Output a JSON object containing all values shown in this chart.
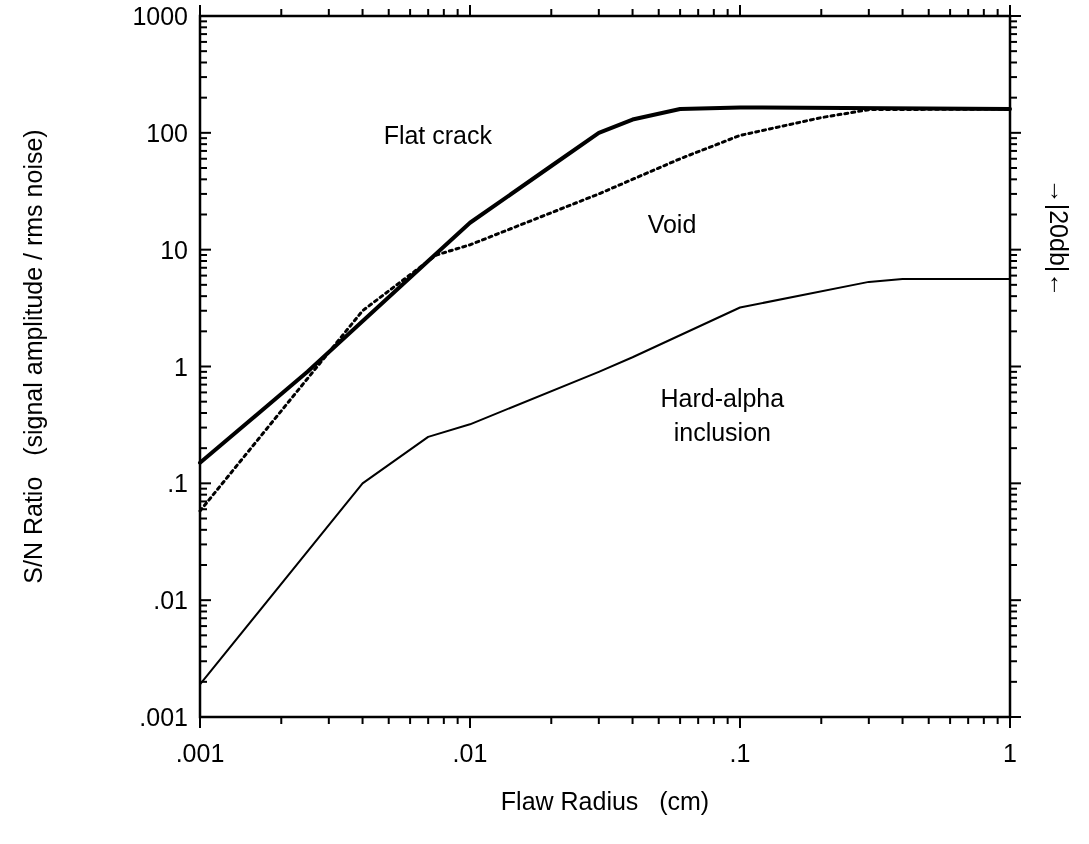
{
  "chart_data": {
    "type": "line",
    "xlabel": "Flaw Radius   (cm)",
    "ylabel": "S/N Ratio   (signal amplitude / rms noise)",
    "log": "xy",
    "xlim": [
      0.001,
      1
    ],
    "ylim": [
      0.001,
      1000
    ],
    "xticks": [
      {
        "value": 0.001,
        "label": ".001"
      },
      {
        "value": 0.002,
        "label": null
      },
      {
        "value": 0.003,
        "label": null
      },
      {
        "value": 0.004,
        "label": null
      },
      {
        "value": 0.005,
        "label": null
      },
      {
        "value": 0.006,
        "label": null
      },
      {
        "value": 0.007,
        "label": null
      },
      {
        "value": 0.008,
        "label": null
      },
      {
        "value": 0.009,
        "label": null
      },
      {
        "value": 0.01,
        "label": ".01"
      },
      {
        "value": 0.02,
        "label": null
      },
      {
        "value": 0.03,
        "label": null
      },
      {
        "value": 0.04,
        "label": null
      },
      {
        "value": 0.05,
        "label": null
      },
      {
        "value": 0.06,
        "label": null
      },
      {
        "value": 0.07,
        "label": null
      },
      {
        "value": 0.08,
        "label": null
      },
      {
        "value": 0.09,
        "label": null
      },
      {
        "value": 0.1,
        "label": ".1"
      },
      {
        "value": 0.2,
        "label": null
      },
      {
        "value": 0.3,
        "label": null
      },
      {
        "value": 0.4,
        "label": null
      },
      {
        "value": 0.5,
        "label": null
      },
      {
        "value": 0.6,
        "label": null
      },
      {
        "value": 0.7,
        "label": null
      },
      {
        "value": 0.8,
        "label": null
      },
      {
        "value": 0.9,
        "label": null
      },
      1
    ],
    "yticks": [
      {
        "value": 0.001,
        "label": ".001"
      },
      {
        "value": 0.002,
        "label": null
      },
      {
        "value": 0.003,
        "label": null
      },
      {
        "value": 0.004,
        "label": null
      },
      {
        "value": 0.005,
        "label": null
      },
      {
        "value": 0.006,
        "label": null
      },
      {
        "value": 0.007,
        "label": null
      },
      {
        "value": 0.008,
        "label": null
      },
      {
        "value": 0.009,
        "label": null
      },
      {
        "value": 0.01,
        "label": ".01"
      },
      {
        "value": 0.02,
        "label": null
      },
      {
        "value": 0.03,
        "label": null
      },
      {
        "value": 0.04,
        "label": null
      },
      {
        "value": 0.05,
        "label": null
      },
      {
        "value": 0.06,
        "label": null
      },
      {
        "value": 0.07,
        "label": null
      },
      {
        "value": 0.08,
        "label": null
      },
      {
        "value": 0.09,
        "label": null
      },
      {
        "value": 0.1,
        "label": ".1"
      },
      {
        "value": 0.2,
        "label": null
      },
      {
        "value": 0.3,
        "label": null
      },
      {
        "value": 0.4,
        "label": null
      },
      {
        "value": 0.5,
        "label": null
      },
      {
        "value": 0.6,
        "label": null
      },
      {
        "value": 0.7,
        "label": null
      },
      {
        "value": 0.8,
        "label": null
      },
      {
        "value": 0.9,
        "label": null
      },
      1,
      {
        "value": 2,
        "label": null
      },
      {
        "value": 3,
        "label": null
      },
      {
        "value": 4,
        "label": null
      },
      {
        "value": 5,
        "label": null
      },
      {
        "value": 6,
        "label": null
      },
      {
        "value": 7,
        "label": null
      },
      {
        "value": 8,
        "label": null
      },
      {
        "value": 9,
        "label": null
      },
      10,
      {
        "value": 20,
        "label": null
      },
      {
        "value": 30,
        "label": null
      },
      {
        "value": 40,
        "label": null
      },
      {
        "value": 50,
        "label": null
      },
      {
        "value": 60,
        "label": null
      },
      {
        "value": 70,
        "label": null
      },
      {
        "value": 80,
        "label": null
      },
      {
        "value": 90,
        "label": null
      },
      100,
      {
        "value": 200,
        "label": null
      },
      {
        "value": 300,
        "label": null
      },
      {
        "value": 400,
        "label": null
      },
      {
        "value": 500,
        "label": null
      },
      {
        "value": 600,
        "label": null
      },
      {
        "value": 700,
        "label": null
      },
      {
        "value": 800,
        "label": null
      },
      {
        "value": 900,
        "label": null
      },
      1000
    ],
    "series": [
      {
        "name": "Flat crack",
        "color": "#000000",
        "line_style": "solid",
        "x": [
          0.001,
          0.0025,
          0.007,
          0.01,
          0.02,
          0.03,
          0.04,
          0.06,
          0.1,
          1
        ],
        "values": [
          0.15,
          0.9,
          8,
          17,
          52,
          100,
          130,
          160,
          165,
          160
        ]
      },
      {
        "name": "Void",
        "color": "#000000",
        "line_style": "dotted",
        "x": [
          0.001,
          0.004,
          0.0075,
          0.01,
          0.03,
          0.06,
          0.1,
          0.2,
          0.3,
          1
        ],
        "values": [
          0.058,
          3,
          9,
          11,
          30,
          60,
          95,
          135,
          158,
          160
        ]
      },
      {
        "name": "Hard-alpha inclusion",
        "color": "#000000",
        "line_style": "solid",
        "x": [
          0.001,
          0.004,
          0.007,
          0.01,
          0.03,
          0.04,
          0.1,
          0.3,
          0.4,
          1
        ],
        "values": [
          0.0019,
          0.1,
          0.25,
          0.32,
          0.9,
          1.2,
          3.2,
          5.3,
          5.6,
          5.6
        ]
      }
    ],
    "annotations": [
      "→|20db|←"
    ]
  }
}
